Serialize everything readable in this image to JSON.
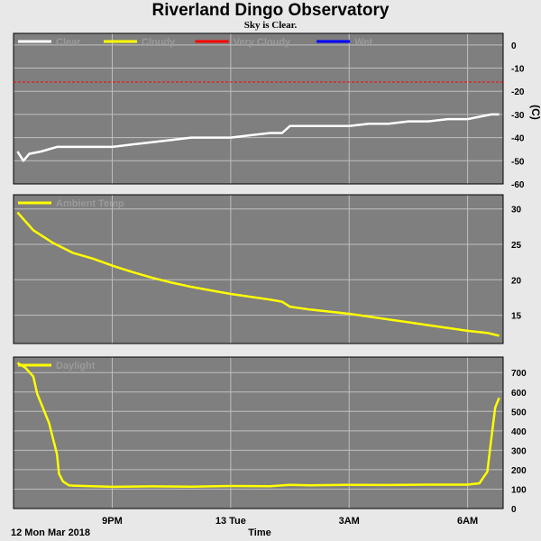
{
  "title": "Riverland Dingo Observatory",
  "subtitle": "Sky is Clear.",
  "x_axis": {
    "label": "Time",
    "start_label": "12 Mon Mar 2018",
    "ticks": [
      {
        "label": "9PM",
        "hour": 21
      },
      {
        "label": "13 Tue",
        "hour": 24
      },
      {
        "label": "3AM",
        "hour": 27
      },
      {
        "label": "6AM",
        "hour": 30
      }
    ],
    "range_hours": [
      18.5,
      30.9
    ]
  },
  "colors": {
    "panel_bg": "#7f7f7f",
    "page_bg": "#e8e8e8",
    "clear": "#ffffff",
    "cloudy": "#ffff00",
    "very_cloudy": "#ff0000",
    "wet": "#0000ff",
    "grid": "#bfbfbf"
  },
  "chart_data": [
    {
      "type": "line",
      "panel": "sky",
      "legend": [
        "Clear",
        "Cloudy",
        "Very Cloudy",
        "Wet"
      ],
      "ylabel": "(C)",
      "ylim": [
        -60,
        5
      ],
      "yticks": [
        0,
        -10,
        -20,
        -30,
        -40,
        -50,
        -60
      ],
      "threshold": {
        "value": -16,
        "color": "#ff0000",
        "style": "dashed"
      },
      "series": [
        {
          "name": "Clear",
          "color": "#ffffff",
          "x": [
            18.6,
            18.75,
            18.9,
            19.2,
            19.6,
            20.0,
            20.5,
            21.0,
            21.5,
            22.0,
            22.5,
            23.0,
            23.5,
            24.0,
            24.5,
            25.0,
            25.3,
            25.5,
            26.0,
            26.5,
            27.0,
            27.5,
            28.0,
            28.5,
            29.0,
            29.5,
            30.0,
            30.3,
            30.6,
            30.8
          ],
          "y": [
            -46,
            -50,
            -47,
            -46,
            -44,
            -44,
            -44,
            -44,
            -43,
            -42,
            -41,
            -40,
            -40,
            -40,
            -39,
            -38,
            -38,
            -35,
            -35,
            -35,
            -35,
            -34,
            -34,
            -33,
            -33,
            -32,
            -32,
            -31,
            -30,
            -30
          ]
        }
      ]
    },
    {
      "type": "line",
      "panel": "ambient",
      "legend": [
        "Ambient Temp"
      ],
      "ylim": [
        11,
        32
      ],
      "yticks": [
        30,
        25,
        20,
        15
      ],
      "series": [
        {
          "name": "Ambient Temp",
          "color": "#ffff00",
          "x": [
            18.6,
            19.0,
            19.5,
            20.0,
            20.5,
            21.0,
            21.5,
            22.0,
            22.5,
            23.0,
            23.5,
            24.0,
            24.5,
            25.0,
            25.3,
            25.5,
            26.0,
            26.5,
            27.0,
            27.5,
            28.0,
            28.5,
            29.0,
            29.5,
            30.0,
            30.5,
            30.8
          ],
          "y": [
            29.5,
            27.0,
            25.2,
            23.8,
            23.0,
            22.0,
            21.1,
            20.3,
            19.6,
            19.0,
            18.5,
            18.0,
            17.6,
            17.2,
            16.9,
            16.2,
            15.8,
            15.5,
            15.2,
            14.8,
            14.4,
            14.0,
            13.6,
            13.2,
            12.8,
            12.5,
            12.1
          ]
        }
      ]
    },
    {
      "type": "line",
      "panel": "daylight",
      "legend": [
        "Daylight"
      ],
      "ylim": [
        0,
        780
      ],
      "yticks": [
        700,
        600,
        500,
        400,
        300,
        200,
        100,
        0
      ],
      "series": [
        {
          "name": "Daylight",
          "color": "#ffff00",
          "x": [
            18.6,
            18.8,
            19.0,
            19.1,
            19.2,
            19.4,
            19.6,
            19.65,
            19.75,
            19.9,
            20.0,
            21.0,
            22.0,
            23.0,
            24.0,
            25.0,
            25.5,
            26.0,
            27.0,
            28.0,
            29.0,
            30.0,
            30.3,
            30.5,
            30.6,
            30.7,
            30.8
          ],
          "y": [
            750,
            725,
            680,
            590,
            540,
            440,
            280,
            180,
            140,
            120,
            118,
            112,
            114,
            113,
            116,
            115,
            122,
            120,
            122,
            121,
            123,
            123,
            130,
            190,
            360,
            520,
            570
          ]
        }
      ]
    }
  ]
}
